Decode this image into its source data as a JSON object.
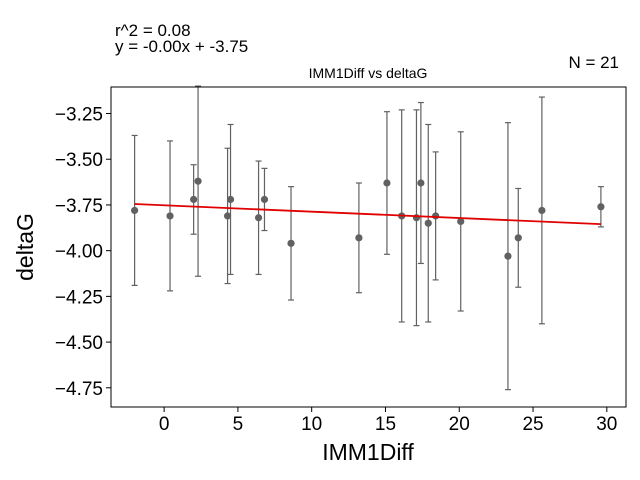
{
  "chart_data": {
    "type": "scatter",
    "title": "IMM1Diff vs deltaG",
    "xlabel": "IMM1Diff",
    "ylabel": "deltaG",
    "annotations": {
      "r2": "r^2 = 0.08",
      "equation": "y = -0.00x + -3.75",
      "n": "N = 21"
    },
    "xlim": [
      -3.6,
      31.3
    ],
    "ylim": [
      -4.855,
      -3.105
    ],
    "xticks": [
      0,
      5,
      10,
      15,
      20,
      25,
      30
    ],
    "xtick_labels": [
      "0",
      "5",
      "10",
      "15",
      "20",
      "25",
      "30"
    ],
    "yticks": [
      -3.25,
      -3.5,
      -3.75,
      -4.0,
      -4.25,
      -4.5,
      -4.75
    ],
    "ytick_labels": [
      "−3.25",
      "−3.50",
      "−3.75",
      "−4.00",
      "−4.25",
      "−4.50",
      "−4.75"
    ],
    "grid": false,
    "point_color": "#616161",
    "fit_color": "#e00000",
    "points": [
      {
        "x": -2.0,
        "y": -3.78,
        "err": 0.41
      },
      {
        "x": 0.4,
        "y": -3.81,
        "err": 0.41
      },
      {
        "x": 2.0,
        "y": -3.72,
        "err": 0.19
      },
      {
        "x": 2.3,
        "y": -3.62,
        "err": 0.52
      },
      {
        "x": 4.3,
        "y": -3.81,
        "err": 0.37
      },
      {
        "x": 4.5,
        "y": -3.72,
        "err": 0.41
      },
      {
        "x": 6.4,
        "y": -3.82,
        "err": 0.31
      },
      {
        "x": 6.8,
        "y": -3.72,
        "err": 0.17
      },
      {
        "x": 8.6,
        "y": -3.96,
        "err": 0.31
      },
      {
        "x": 13.2,
        "y": -3.93,
        "err": 0.3
      },
      {
        "x": 15.1,
        "y": -3.63,
        "err": 0.39
      },
      {
        "x": 16.1,
        "y": -3.81,
        "err": 0.58
      },
      {
        "x": 17.1,
        "y": -3.82,
        "err": 0.59
      },
      {
        "x": 17.4,
        "y": -3.63,
        "err": 0.44
      },
      {
        "x": 17.9,
        "y": -3.85,
        "err": 0.54
      },
      {
        "x": 18.4,
        "y": -3.81,
        "err": 0.35
      },
      {
        "x": 20.1,
        "y": -3.84,
        "err": 0.49
      },
      {
        "x": 23.3,
        "y": -4.03,
        "err": 0.73
      },
      {
        "x": 24.0,
        "y": -3.93,
        "err": 0.27
      },
      {
        "x": 25.6,
        "y": -3.78,
        "err": 0.62
      },
      {
        "x": 29.6,
        "y": -3.76,
        "err": 0.11
      }
    ],
    "fit": {
      "x": [
        -2.0,
        29.6
      ],
      "y": [
        -3.745,
        -3.855
      ]
    }
  }
}
